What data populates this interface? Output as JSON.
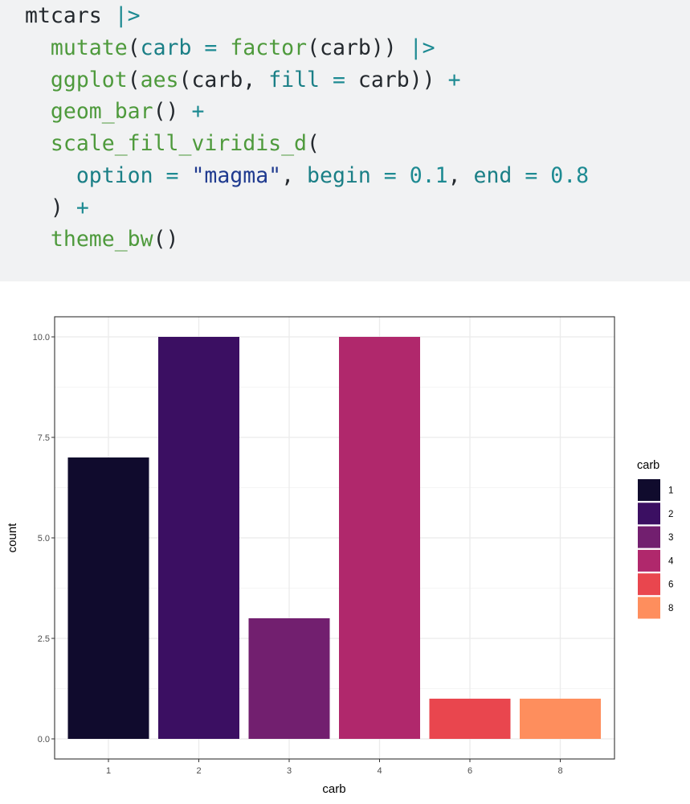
{
  "code": {
    "lines": [
      [
        {
          "text": "mtcars ",
          "color": "#24292e"
        },
        {
          "text": "|>",
          "color": "#1d8a92"
        }
      ],
      [
        {
          "text": "  ",
          "color": "#24292e"
        },
        {
          "text": "mutate",
          "color": "#4e9a3c"
        },
        {
          "text": "(",
          "color": "#24292e"
        },
        {
          "text": "carb",
          "color": "#1a7f86"
        },
        {
          "text": " = ",
          "color": "#1d8a92"
        },
        {
          "text": "factor",
          "color": "#4e9a3c"
        },
        {
          "text": "(carb)) ",
          "color": "#24292e"
        },
        {
          "text": "|>",
          "color": "#1d8a92"
        }
      ],
      [
        {
          "text": "  ",
          "color": "#24292e"
        },
        {
          "text": "ggplot",
          "color": "#4e9a3c"
        },
        {
          "text": "(",
          "color": "#24292e"
        },
        {
          "text": "aes",
          "color": "#4e9a3c"
        },
        {
          "text": "(carb, ",
          "color": "#24292e"
        },
        {
          "text": "fill",
          "color": "#1a7f86"
        },
        {
          "text": " = ",
          "color": "#1d8a92"
        },
        {
          "text": "carb)) ",
          "color": "#24292e"
        },
        {
          "text": "+",
          "color": "#1d8a92"
        }
      ],
      [
        {
          "text": "  ",
          "color": "#24292e"
        },
        {
          "text": "geom_bar",
          "color": "#4e9a3c"
        },
        {
          "text": "() ",
          "color": "#24292e"
        },
        {
          "text": "+",
          "color": "#1d8a92"
        }
      ],
      [
        {
          "text": "  ",
          "color": "#24292e"
        },
        {
          "text": "scale_fill_viridis_d",
          "color": "#4e9a3c"
        },
        {
          "text": "(",
          "color": "#24292e"
        }
      ],
      [
        {
          "text": "    ",
          "color": "#24292e"
        },
        {
          "text": "option",
          "color": "#1a7f86"
        },
        {
          "text": " = ",
          "color": "#1d8a92"
        },
        {
          "text": "\"magma\"",
          "color": "#1f3a8f"
        },
        {
          "text": ", ",
          "color": "#24292e"
        },
        {
          "text": "begin",
          "color": "#1a7f86"
        },
        {
          "text": " = ",
          "color": "#1d8a92"
        },
        {
          "text": "0.1",
          "color": "#1d8a92"
        },
        {
          "text": ", ",
          "color": "#24292e"
        },
        {
          "text": "end",
          "color": "#1a7f86"
        },
        {
          "text": " = ",
          "color": "#1d8a92"
        },
        {
          "text": "0.8",
          "color": "#1d8a92"
        }
      ],
      [
        {
          "text": "  ) ",
          "color": "#24292e"
        },
        {
          "text": "+",
          "color": "#1d8a92"
        }
      ],
      [
        {
          "text": "  ",
          "color": "#24292e"
        },
        {
          "text": "theme_bw",
          "color": "#4e9a3c"
        },
        {
          "text": "()",
          "color": "#24292e"
        }
      ]
    ]
  },
  "chart_data": {
    "type": "bar",
    "categories": [
      "1",
      "2",
      "3",
      "4",
      "6",
      "8"
    ],
    "values": [
      7,
      10,
      3,
      10,
      1,
      1
    ],
    "colors": [
      "#100b2d",
      "#3b0f62",
      "#721f6f",
      "#b0286c",
      "#e9464e",
      "#fe8e5d"
    ],
    "xlabel": "carb",
    "ylabel": "count",
    "ylim": [
      0,
      10.5
    ],
    "yticks": [
      0,
      2.5,
      5,
      7.5,
      10
    ],
    "ytick_labels": [
      "0.0",
      "2.5",
      "5.0",
      "7.5",
      "10.0"
    ],
    "grid": true,
    "legend": {
      "title": "carb",
      "placement": "right",
      "entries": [
        "1",
        "2",
        "3",
        "4",
        "6",
        "8"
      ]
    }
  }
}
